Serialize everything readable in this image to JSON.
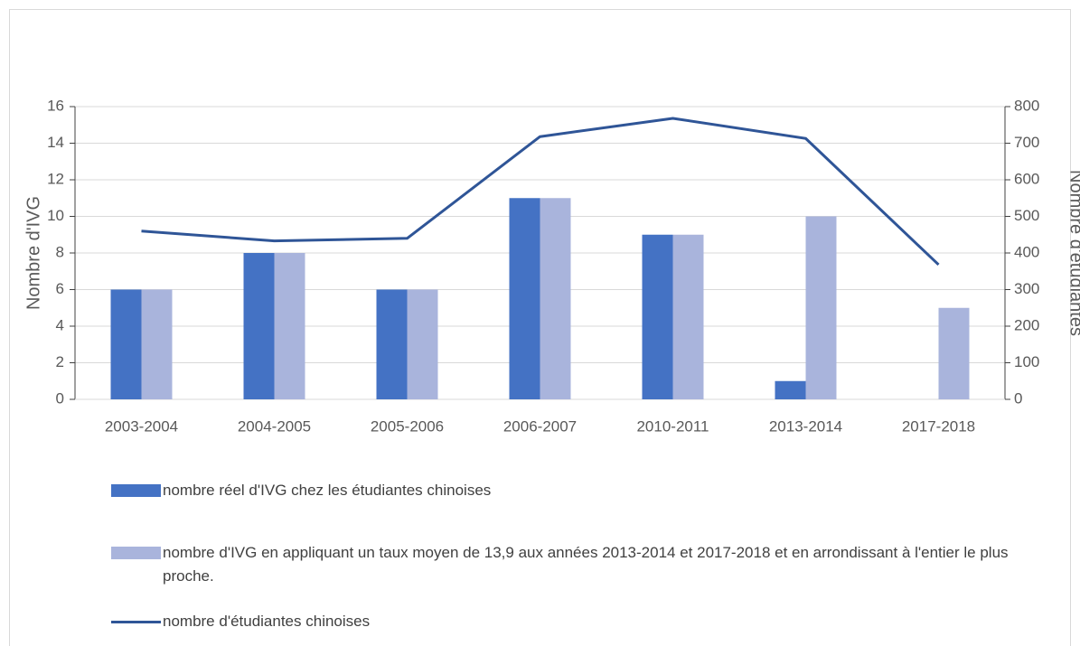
{
  "chart_data": {
    "type": "bar",
    "categories": [
      "2003-2004",
      "2004-2005",
      "2005-2006",
      "2006-2007",
      "2010-2011",
      "2013-2014",
      "2017-2018"
    ],
    "series": [
      {
        "name": "nombre réel d'IVG chez les étudiantes chinoises",
        "color": "#4472c4",
        "values": [
          6,
          8,
          6,
          11,
          9,
          1,
          null
        ]
      },
      {
        "name": "nombre d'IVG en appliquant un taux moyen de 13,9 aux années 2013-2014 et 2017-2018 et en arrondissant à l'entier le plus proche.",
        "color": "#a9b4dc",
        "values": [
          6,
          8,
          6,
          11,
          9,
          10,
          5
        ]
      },
      {
        "name": "nombre d'étudiantes chinoises",
        "color": "#2f5597",
        "type": "line",
        "axis": "y2",
        "values": [
          460,
          433,
          440,
          718,
          768,
          713,
          368
        ]
      }
    ],
    "ylabel": "Nombre d'IVG",
    "y2label": "Nombre d'étudiantes",
    "ylim": [
      0,
      16
    ],
    "yticks": [
      0,
      2,
      4,
      6,
      8,
      10,
      12,
      14,
      16
    ],
    "y2lim": [
      0,
      800
    ],
    "y2ticks": [
      0,
      100,
      200,
      300,
      400,
      500,
      600,
      700,
      800
    ],
    "grid": true,
    "legend": "bottom"
  }
}
